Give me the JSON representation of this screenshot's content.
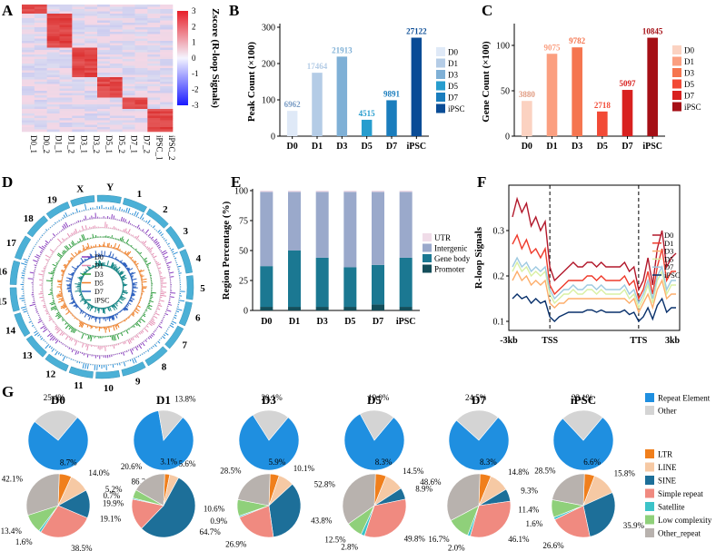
{
  "panels": {
    "A": {
      "label": "A",
      "colorbar_title": "Zscore (R-loop Signals)",
      "colorbar_ticks": [
        "3",
        "2",
        "1",
        "0",
        "-1",
        "-2",
        "-3"
      ],
      "colors": {
        "high": "#e8202a",
        "mid": "#f4f4ff",
        "low": "#1a1aff"
      }
    },
    "B": {
      "label": "B"
    },
    "C": {
      "label": "C"
    },
    "D": {
      "label": "D",
      "chromosomes": [
        "1",
        "2",
        "3",
        "4",
        "5",
        "6",
        "7",
        "8",
        "9",
        "10",
        "11",
        "12",
        "13",
        "14",
        "15",
        "16",
        "17",
        "18",
        "19",
        "X",
        "Y"
      ],
      "legend": [
        "D0",
        "D1",
        "D3",
        "D5",
        "D7",
        "iPSC"
      ],
      "track_colors": [
        "#2a8fd6",
        "#8a3fbf",
        "#e58fb4",
        "#2f9e3f",
        "#ef7d24",
        "#2f62c0",
        "#1d8a8a"
      ]
    },
    "E": {
      "label": "E"
    },
    "F": {
      "label": "F"
    },
    "G": {
      "label": "G",
      "row1_legend": [
        "Repeat Element",
        "Other"
      ],
      "row1_colors": [
        "#1f8fe0",
        "#d4d4d4"
      ],
      "row2_legend": [
        "LTR",
        "LINE",
        "SINE",
        "Simple repeat",
        "Satellite",
        "Low complexity",
        "Other_repeat"
      ],
      "row2_colors": [
        "#f07f1c",
        "#f6c9a4",
        "#1d6f99",
        "#f08a80",
        "#3cc3c8",
        "#8fd07a",
        "#b8b2ae"
      ]
    }
  },
  "chart_data": [
    {
      "panel": "A",
      "type": "heatmap",
      "categories": [
        "D0_1",
        "D0_2",
        "D1_1",
        "D1_2",
        "D3_1",
        "D3_2",
        "D5_1",
        "D5_2",
        "D7_1",
        "D7_2",
        "iPSC_1",
        "iPSC_2"
      ],
      "blocks": [
        {
          "rows_fraction": [
            0.0,
            0.08
          ],
          "high_columns": [
            0,
            1
          ]
        },
        {
          "rows_fraction": [
            0.08,
            0.34
          ],
          "high_columns": [
            2,
            3
          ]
        },
        {
          "rows_fraction": [
            0.34,
            0.58
          ],
          "high_columns": [
            4,
            5
          ]
        },
        {
          "rows_fraction": [
            0.58,
            0.73
          ],
          "high_columns": [
            6,
            7
          ]
        },
        {
          "rows_fraction": [
            0.73,
            0.83
          ],
          "high_columns": [
            8,
            9
          ]
        },
        {
          "rows_fraction": [
            0.83,
            1.0
          ],
          "high_columns": [
            10,
            11
          ]
        }
      ],
      "zlim": [
        -3,
        3
      ]
    },
    {
      "panel": "B",
      "type": "bar",
      "ylabel": "Peak Count (×100)",
      "categories": [
        "D0",
        "D1",
        "D3",
        "D5",
        "D7",
        "iPSC"
      ],
      "values": [
        6962,
        17464,
        21913,
        4515,
        9891,
        27122
      ],
      "value_labels": [
        "6962",
        "17464",
        "21913",
        "4515",
        "9891",
        "27122"
      ],
      "ylim": [
        0,
        300
      ],
      "yticks": [
        "0",
        "100",
        "200",
        "300"
      ],
      "colors": [
        "#dfe9f7",
        "#b4cce6",
        "#7fb0d6",
        "#279dce",
        "#1a7dbd",
        "#0a4c96"
      ],
      "legend": [
        "D0",
        "D1",
        "D3",
        "D5",
        "D7",
        "iPSC"
      ]
    },
    {
      "panel": "C",
      "type": "bar",
      "ylabel": "Gene Count (×100)",
      "categories": [
        "D0",
        "D1",
        "D3",
        "D5",
        "D7",
        "iPSC"
      ],
      "values": [
        3880,
        9075,
        9782,
        2718,
        5097,
        10845
      ],
      "value_labels": [
        "3880",
        "9075",
        "9782",
        "2718",
        "5097",
        "10845"
      ],
      "ylim": [
        0,
        120
      ],
      "yticks": [
        "0",
        "50",
        "100"
      ],
      "colors": [
        "#fbd2c1",
        "#fb9f80",
        "#f5754f",
        "#f24a36",
        "#d8211f",
        "#a50f15"
      ],
      "legend": [
        "D0",
        "D1",
        "D3",
        "D5",
        "D7",
        "iPSC"
      ]
    },
    {
      "panel": "E",
      "type": "bar",
      "stacked": true,
      "ylabel": "Region Percentage (%)",
      "categories": [
        "D0",
        "D1",
        "D3",
        "D5",
        "D7",
        "iPSC"
      ],
      "ylim": [
        0,
        100
      ],
      "yticks": [
        "0",
        "25",
        "50",
        "75",
        "100"
      ],
      "series": [
        {
          "name": "Promoter",
          "values": [
            3,
            3,
            3,
            3,
            5,
            3
          ],
          "color": "#144e5a"
        },
        {
          "name": "Gene body",
          "values": [
            34,
            47,
            41,
            33,
            33,
            41
          ],
          "color": "#1b7892"
        },
        {
          "name": "Intergenic",
          "values": [
            62,
            49,
            55,
            63,
            61,
            55
          ],
          "color": "#9aa9cb"
        },
        {
          "name": "UTR",
          "values": [
            1,
            1,
            1,
            1,
            1,
            1
          ],
          "color": "#f0dce8"
        }
      ],
      "legend": [
        "UTR",
        "Intergenic",
        "Gene body",
        "Promoter"
      ]
    },
    {
      "panel": "F",
      "type": "line",
      "ylabel": "R-loop Signals",
      "xticks": [
        "-3kb",
        "TSS",
        "TTS",
        "3kb"
      ],
      "yticks": [
        "0.1",
        "0.2",
        "0.3"
      ],
      "ylim": [
        0.08,
        0.4
      ],
      "series": [
        {
          "name": "D0",
          "color": "#b2182b",
          "values": [
            0.33,
            0.37,
            0.34,
            0.36,
            0.31,
            0.33,
            0.3,
            0.32,
            0.22,
            0.19,
            0.2,
            0.21,
            0.22,
            0.23,
            0.22,
            0.22,
            0.23,
            0.23,
            0.22,
            0.23,
            0.22,
            0.22,
            0.22,
            0.22,
            0.23,
            0.21,
            0.22,
            0.17,
            0.19,
            0.24,
            0.18,
            0.26,
            0.3,
            0.22,
            0.24,
            0.25
          ]
        },
        {
          "name": "D1",
          "color": "#ef3b2c",
          "values": [
            0.27,
            0.29,
            0.26,
            0.28,
            0.25,
            0.26,
            0.24,
            0.26,
            0.18,
            0.16,
            0.17,
            0.18,
            0.19,
            0.19,
            0.19,
            0.19,
            0.2,
            0.2,
            0.19,
            0.2,
            0.19,
            0.19,
            0.19,
            0.19,
            0.2,
            0.18,
            0.19,
            0.15,
            0.17,
            0.21,
            0.16,
            0.22,
            0.26,
            0.19,
            0.21,
            0.21
          ]
        },
        {
          "name": "D3",
          "color": "#fdae6b",
          "values": [
            0.19,
            0.21,
            0.19,
            0.2,
            0.18,
            0.19,
            0.18,
            0.19,
            0.14,
            0.13,
            0.14,
            0.14,
            0.15,
            0.15,
            0.15,
            0.15,
            0.15,
            0.15,
            0.15,
            0.15,
            0.15,
            0.15,
            0.15,
            0.15,
            0.15,
            0.14,
            0.15,
            0.12,
            0.14,
            0.16,
            0.13,
            0.17,
            0.19,
            0.15,
            0.16,
            0.16
          ]
        },
        {
          "name": "D5",
          "color": "#d9f0a3",
          "values": [
            0.21,
            0.23,
            0.21,
            0.22,
            0.2,
            0.21,
            0.2,
            0.21,
            0.16,
            0.14,
            0.15,
            0.16,
            0.16,
            0.17,
            0.16,
            0.16,
            0.17,
            0.17,
            0.16,
            0.17,
            0.16,
            0.16,
            0.16,
            0.16,
            0.17,
            0.15,
            0.16,
            0.13,
            0.15,
            0.18,
            0.14,
            0.19,
            0.21,
            0.16,
            0.18,
            0.18
          ]
        },
        {
          "name": "D7",
          "color": "#9ecae1",
          "values": [
            0.22,
            0.24,
            0.22,
            0.23,
            0.21,
            0.22,
            0.21,
            0.22,
            0.17,
            0.15,
            0.16,
            0.17,
            0.17,
            0.18,
            0.17,
            0.17,
            0.18,
            0.18,
            0.17,
            0.18,
            0.17,
            0.17,
            0.17,
            0.17,
            0.18,
            0.16,
            0.17,
            0.14,
            0.16,
            0.19,
            0.15,
            0.2,
            0.22,
            0.17,
            0.19,
            0.19
          ]
        },
        {
          "name": "iPSC",
          "color": "#08306b",
          "values": [
            0.15,
            0.16,
            0.15,
            0.155,
            0.14,
            0.15,
            0.14,
            0.145,
            0.11,
            0.1,
            0.11,
            0.115,
            0.12,
            0.12,
            0.12,
            0.12,
            0.125,
            0.125,
            0.12,
            0.125,
            0.12,
            0.12,
            0.12,
            0.12,
            0.125,
            0.115,
            0.12,
            0.1,
            0.11,
            0.13,
            0.105,
            0.135,
            0.15,
            0.12,
            0.13,
            0.13
          ]
        }
      ],
      "legend": [
        "D0",
        "D1",
        "D3",
        "D5",
        "D7",
        "iPSC"
      ]
    },
    {
      "panel": "G",
      "type": "pie",
      "row": 1,
      "titles": [
        "D0",
        "D1",
        "D3",
        "D5",
        "D7",
        "iPSC"
      ],
      "series": [
        {
          "name": "D0",
          "values": [
            74.6,
            25.4
          ],
          "labels": [
            "74.6%",
            "25.4%"
          ]
        },
        {
          "name": "D1",
          "values": [
            86.2,
            13.8
          ],
          "labels": [
            "86.2%",
            "13.8%"
          ]
        },
        {
          "name": "D3",
          "values": [
            79.9,
            20.1
          ],
          "labels": [
            "79.9%",
            "20.1%"
          ]
        },
        {
          "name": "D5",
          "values": [
            81.0,
            19.0
          ],
          "labels": [
            "81.0%",
            "19.0%"
          ]
        },
        {
          "name": "D7",
          "values": [
            75.5,
            24.5
          ],
          "labels": [
            "75.5%",
            "24.5%"
          ]
        },
        {
          "name": "iPSC",
          "values": [
            76.9,
            23.1
          ],
          "labels": [
            "76.9%",
            "23.1%"
          ]
        }
      ]
    },
    {
      "panel": "G",
      "type": "pie",
      "row": 2,
      "series": [
        {
          "name": "D0",
          "values": [
            8.7,
            14.0,
            19.9,
            38.5,
            1.6,
            13.4,
            42.1
          ],
          "labels": [
            "8.7%",
            "14.0%",
            "19.9%",
            "38.5%",
            "1.6%",
            "13.4%",
            "42.1%"
          ]
        },
        {
          "name": "D1",
          "values": [
            3.1,
            5.6,
            64.7,
            19.1,
            0.7,
            5.2,
            20.6
          ],
          "labels": [
            "3.1%",
            "5.6%",
            "64.7%",
            "19.1%",
            "0.7%",
            "5.2%",
            "20.6%"
          ]
        },
        {
          "name": "D3",
          "values": [
            5.9,
            10.1,
            43.8,
            26.9,
            0.9,
            10.6,
            28.5
          ],
          "labels": [
            "5.9%",
            "10.1%",
            "43.8%",
            "26.9%",
            "0.9%",
            "10.6%",
            "28.5%"
          ]
        },
        {
          "name": "D5",
          "values": [
            8.3,
            14.5,
            8.9,
            49.8,
            2.8,
            12.5,
            52.8
          ],
          "labels": [
            "8.3%",
            "14.5%",
            "8.9%",
            "49.8%",
            "2.8%",
            "12.5%",
            "52.8%"
          ]
        },
        {
          "name": "D7",
          "values": [
            8.3,
            14.8,
            9.3,
            46.1,
            2.0,
            16.7,
            48.6
          ],
          "labels": [
            "8.3%",
            "14.8%",
            "9.3%",
            "46.1%",
            "2.0%",
            "16.7%",
            "48.6%"
          ]
        },
        {
          "name": "iPSC",
          "values": [
            6.6,
            15.8,
            35.9,
            26.6,
            1.6,
            11.4,
            28.5
          ],
          "labels": [
            "6.6%",
            "15.8%",
            "35.9%",
            "26.6%",
            "1.6%",
            "11.4%",
            "28.5%"
          ]
        }
      ]
    }
  ]
}
